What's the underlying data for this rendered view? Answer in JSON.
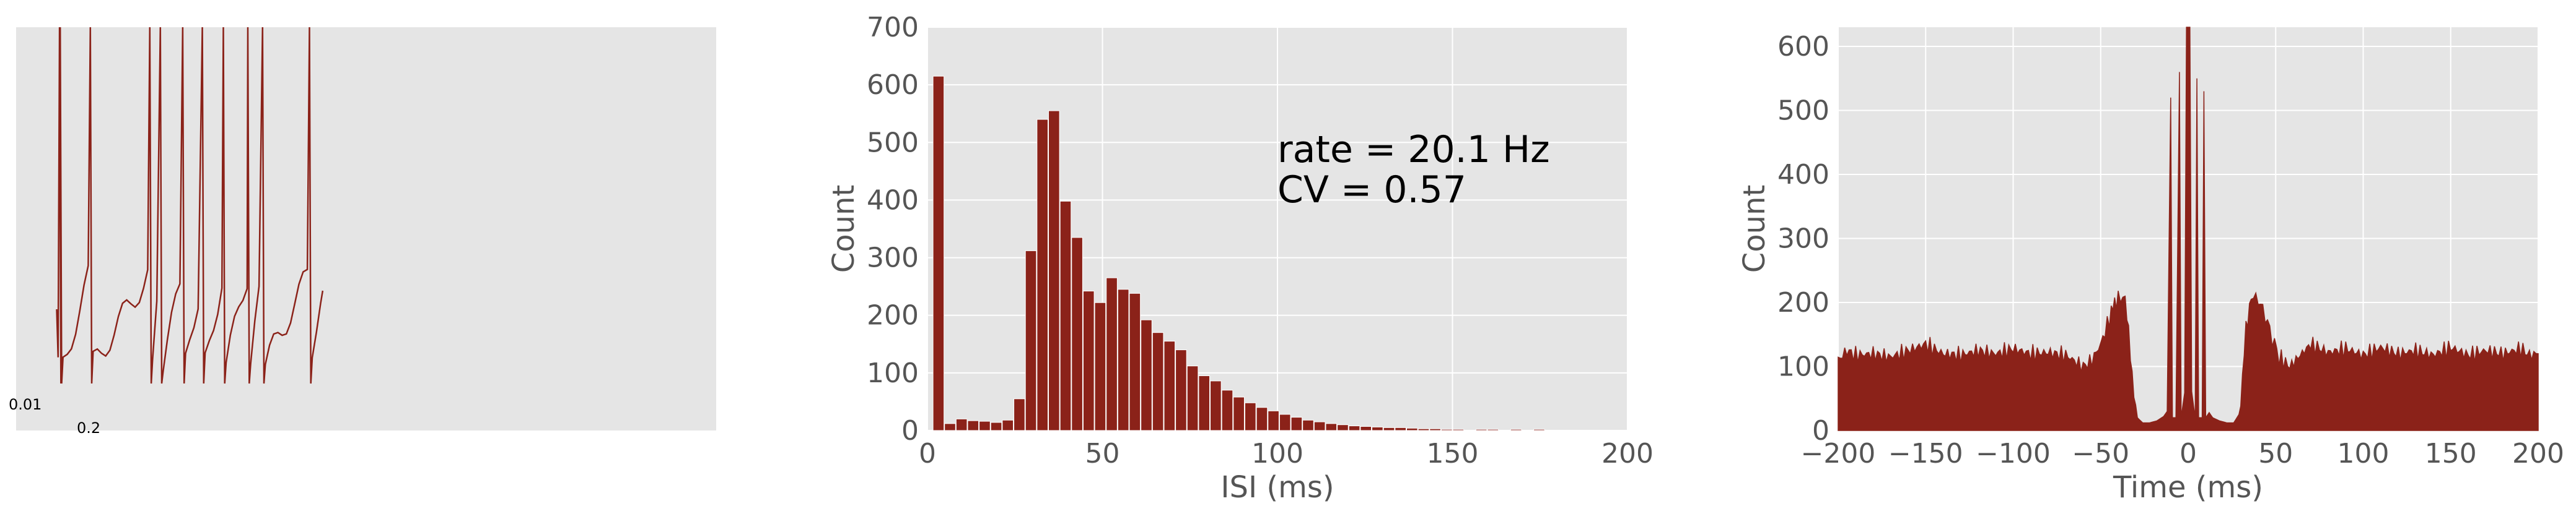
{
  "colors": {
    "plot_bg": "#e5e5e5",
    "grid": "#ffffff",
    "mark": "#8b2219",
    "tick_text": "#555555"
  },
  "chart_data": [
    {
      "type": "line",
      "title": "",
      "description_label": "membrane-voltage-trace",
      "scale_bar": {
        "y_label": "0.01",
        "x_label": "0.2"
      },
      "xlim": [
        0,
        1.0
      ],
      "ylim": [
        0,
        1.0
      ],
      "spike_times": [
        0.062,
        0.063,
        0.106,
        0.191,
        0.206,
        0.238,
        0.266,
        0.296,
        0.331,
        0.352,
        0.419
      ],
      "trace_end": 0.438
    },
    {
      "type": "bar",
      "title": "",
      "xlabel": "ISI (ms)",
      "ylabel": "Count",
      "xlim": [
        0,
        200
      ],
      "ylim": [
        0,
        700
      ],
      "xticks": [
        0,
        50,
        100,
        150,
        200
      ],
      "yticks": [
        0,
        100,
        200,
        300,
        400,
        500,
        600,
        700
      ],
      "bin_width": 3.3,
      "bin_starts": [
        1.6,
        4.9,
        8.2,
        11.5,
        14.8,
        18.1,
        21.4,
        24.7,
        28.0,
        31.3,
        34.6,
        37.9,
        41.2,
        44.5,
        47.8,
        51.1,
        54.4,
        57.7,
        61.0,
        64.3,
        67.6,
        70.9,
        74.2,
        77.5,
        80.8,
        84.1,
        87.4,
        90.7,
        94.0,
        97.3,
        100.6,
        103.9,
        107.2,
        110.5,
        113.8,
        117.1,
        120.4,
        123.7,
        127.0,
        130.3,
        133.6,
        136.9,
        140.2,
        143.5,
        146.8,
        150.1,
        153.4,
        156.7,
        160.0,
        163.3,
        166.6,
        169.9,
        173.2
      ],
      "values": [
        615,
        12,
        20,
        17,
        16,
        14,
        18,
        55,
        312,
        540,
        555,
        398,
        335,
        242,
        222,
        265,
        245,
        238,
        192,
        170,
        155,
        140,
        112,
        95,
        86,
        70,
        58,
        48,
        40,
        34,
        28,
        23,
        18,
        15,
        12,
        10,
        8,
        7,
        6,
        5,
        5,
        4,
        3,
        3,
        2,
        2,
        0,
        2,
        2,
        0,
        2,
        0,
        2
      ],
      "annotations": [
        "rate = 20.1 Hz",
        "CV = 0.57"
      ]
    },
    {
      "type": "area",
      "title": "",
      "xlabel": "Time (ms)",
      "ylabel": "Count",
      "xlim": [
        -200,
        200
      ],
      "ylim": [
        0,
        630
      ],
      "xticks": [
        -200,
        -150,
        -100,
        -50,
        0,
        50,
        100,
        150,
        200
      ],
      "xtick_labels": [
        "−200",
        "−150",
        "−100",
        "−50",
        "0",
        "50",
        "100",
        "150",
        "200"
      ],
      "yticks": [
        0,
        100,
        200,
        300,
        400,
        500,
        600
      ],
      "envelope": [
        [
          -200,
          110
        ],
        [
          -195,
          125
        ],
        [
          -190,
          118
        ],
        [
          -180,
          120
        ],
        [
          -170,
          115
        ],
        [
          -160,
          125
        ],
        [
          -150,
          135
        ],
        [
          -140,
          120
        ],
        [
          -130,
          118
        ],
        [
          -120,
          125
        ],
        [
          -110,
          120
        ],
        [
          -100,
          128
        ],
        [
          -90,
          120
        ],
        [
          -80,
          122
        ],
        [
          -70,
          118
        ],
        [
          -60,
          100
        ],
        [
          -55,
          110
        ],
        [
          -50,
          135
        ],
        [
          -45,
          175
        ],
        [
          -42,
          200
        ],
        [
          -40,
          210
        ],
        [
          -36,
          205
        ],
        [
          -34,
          150
        ],
        [
          -31,
          60
        ],
        [
          -29,
          20
        ],
        [
          -26,
          12
        ],
        [
          -22,
          12
        ],
        [
          -18,
          15
        ],
        [
          -14,
          22
        ],
        [
          -12,
          30
        ],
        [
          -10,
          520
        ],
        [
          -9,
          20
        ],
        [
          -7,
          20
        ],
        [
          -5,
          560
        ],
        [
          -4,
          20
        ],
        [
          -2,
          60
        ],
        [
          -1,
          640
        ],
        [
          0,
          640
        ],
        [
          1,
          640
        ],
        [
          2,
          60
        ],
        [
          4,
          20
        ],
        [
          5,
          550
        ],
        [
          6,
          20
        ],
        [
          8,
          20
        ],
        [
          9,
          530
        ],
        [
          10,
          20
        ],
        [
          12,
          28
        ],
        [
          14,
          20
        ],
        [
          18,
          15
        ],
        [
          22,
          12
        ],
        [
          26,
          12
        ],
        [
          29,
          25
        ],
        [
          31,
          80
        ],
        [
          33,
          160
        ],
        [
          36,
          210
        ],
        [
          40,
          205
        ],
        [
          44,
          180
        ],
        [
          48,
          145
        ],
        [
          52,
          115
        ],
        [
          58,
          100
        ],
        [
          64,
          118
        ],
        [
          70,
          135
        ],
        [
          80,
          122
        ],
        [
          90,
          128
        ],
        [
          100,
          118
        ],
        [
          110,
          130
        ],
        [
          120,
          120
        ],
        [
          130,
          125
        ],
        [
          140,
          118
        ],
        [
          150,
          130
        ],
        [
          160,
          118
        ],
        [
          170,
          125
        ],
        [
          180,
          120
        ],
        [
          190,
          128
        ],
        [
          195,
          118
        ],
        [
          200,
          120
        ]
      ]
    }
  ]
}
